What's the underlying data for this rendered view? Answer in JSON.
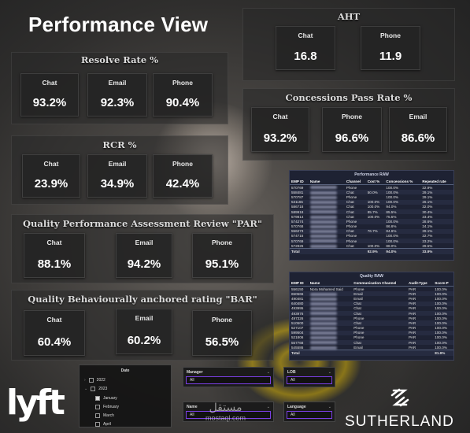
{
  "page_title": "Performance View",
  "resolve_rate": {
    "title": "Resolve Rate %",
    "cards": [
      {
        "label": "Chat",
        "value": "93.2%"
      },
      {
        "label": "Email",
        "value": "92.3%"
      },
      {
        "label": "Phone",
        "value": "90.4%"
      }
    ]
  },
  "rcr": {
    "title": "RCR %",
    "cards": [
      {
        "label": "Chat",
        "value": "23.9%"
      },
      {
        "label": "Email",
        "value": "34.9%"
      },
      {
        "label": "Phone",
        "value": "42.4%"
      }
    ]
  },
  "par": {
    "title": "Quality Performance Assessment Review \"PAR\"",
    "cards": [
      {
        "label": "Chat",
        "value": "88.1%"
      },
      {
        "label": "Email",
        "value": "94.2%"
      },
      {
        "label": "Phone",
        "value": "95.1%"
      }
    ]
  },
  "bar": {
    "title": "Quality Behaviourally anchored rating \"BAR\"",
    "cards": [
      {
        "label": "Chat",
        "value": "60.4%"
      },
      {
        "label": "Email",
        "value": "60.2%"
      },
      {
        "label": "Phone",
        "value": "56.5%"
      }
    ]
  },
  "aht": {
    "title": "AHT",
    "cards": [
      {
        "label": "Chat",
        "value": "16.8"
      },
      {
        "label": "Phone",
        "value": "11.9"
      }
    ]
  },
  "concessions": {
    "title": "Concessions Pass Rate %",
    "cards": [
      {
        "label": "Chat",
        "value": "93.2%"
      },
      {
        "label": "Phone",
        "value": "96.6%"
      },
      {
        "label": "Email",
        "value": "86.6%"
      }
    ]
  },
  "performance_table": {
    "title": "Performance RAW",
    "headers": [
      "EMP ID",
      "Name",
      "Channel",
      "Cost %",
      "Concessions %",
      "Repeated rate"
    ],
    "rows": [
      [
        "570769",
        "",
        "Phone",
        "",
        "100.0%",
        "22.9%"
      ],
      [
        "558481",
        "",
        "Chat",
        "50.0%",
        "100.0%",
        "29.1%"
      ],
      [
        "570787",
        "",
        "Phone",
        "",
        "100.0%",
        "29.1%"
      ],
      [
        "531165",
        "",
        "Chat",
        "100.0%",
        "100.0%",
        "26.1%"
      ],
      [
        "586718",
        "",
        "Chat",
        "100.0%",
        "94.0%",
        "32.0%"
      ],
      [
        "589918",
        "",
        "Chat",
        "85.7%",
        "85.5%",
        "30.4%"
      ],
      [
        "579814",
        "",
        "Chat",
        "100.0%",
        "75.5%",
        "23.4%"
      ],
      [
        "574274",
        "",
        "Phone",
        "",
        "100.0%",
        "28.6%"
      ],
      [
        "570768",
        "",
        "Phone",
        "",
        "86.6%",
        "24.1%"
      ],
      [
        "556273",
        "",
        "Chat",
        "76.7%",
        "84.6%",
        "29.1%"
      ],
      [
        "574716",
        "",
        "Phone",
        "",
        "100.0%",
        "22.7%"
      ],
      [
        "570769",
        "",
        "Phone",
        "",
        "100.0%",
        "23.2%"
      ],
      [
        "572826",
        "",
        "Chat",
        "100.0%",
        "88.0%",
        "29.5%"
      ]
    ],
    "total": [
      "Total",
      "",
      "",
      "92.9%",
      "94.0%",
      "33.9%"
    ]
  },
  "quality_table": {
    "title": "Quality RAW",
    "headers": [
      "EMP ID",
      "Name",
      "Communication Channel",
      "Audit-Type",
      "Score-P"
    ],
    "rows": [
      [
        "556150",
        "Nora Mohamed Said",
        "Phone",
        "PAR",
        "100.0%"
      ],
      [
        "650566",
        "",
        "Email",
        "PAR",
        "100.0%"
      ],
      [
        "490481",
        "",
        "Email",
        "PAR",
        "100.0%"
      ],
      [
        "640480",
        "",
        "Chat",
        "PAR",
        "100.0%"
      ],
      [
        "493995",
        "",
        "Chat",
        "PAR",
        "100.0%"
      ],
      [
        "493976",
        "",
        "Chat",
        "PAR",
        "100.0%"
      ],
      [
        "497326",
        "",
        "Phone",
        "PAR",
        "100.0%"
      ],
      [
        "510500",
        "",
        "Chat",
        "PAR",
        "100.0%"
      ],
      [
        "527107",
        "",
        "Phone",
        "PAR",
        "100.0%"
      ],
      [
        "599504",
        "",
        "Phone",
        "PAR",
        "100.0%"
      ],
      [
        "521806",
        "",
        "Phone",
        "PAR",
        "100.0%"
      ],
      [
        "557768",
        "",
        "Chat",
        "PAR",
        "100.0%"
      ],
      [
        "545586",
        "",
        "Email",
        "PAR",
        "100.0%"
      ]
    ],
    "total": [
      "Total",
      "",
      "",
      "",
      "81.9%"
    ]
  },
  "date_slicer": {
    "title": "Date",
    "years": [
      "2022",
      "2023"
    ],
    "months": [
      "January",
      "February",
      "March",
      "April"
    ]
  },
  "manager_slicer": {
    "title": "Manager",
    "value": "All"
  },
  "lob_slicer": {
    "title": "LOB",
    "value": "All"
  },
  "name_slicer": {
    "title": "Name",
    "value": "All"
  },
  "language_slicer": {
    "title": "Language",
    "value": "All"
  },
  "brand_left": "lyft",
  "brand_right": "SUTHERLAND",
  "watermark": {
    "arabic": "مستقل",
    "url": "mostaql.com"
  },
  "colors": {
    "accent": "#7b3fe4",
    "table_bg": "#1e2233"
  }
}
